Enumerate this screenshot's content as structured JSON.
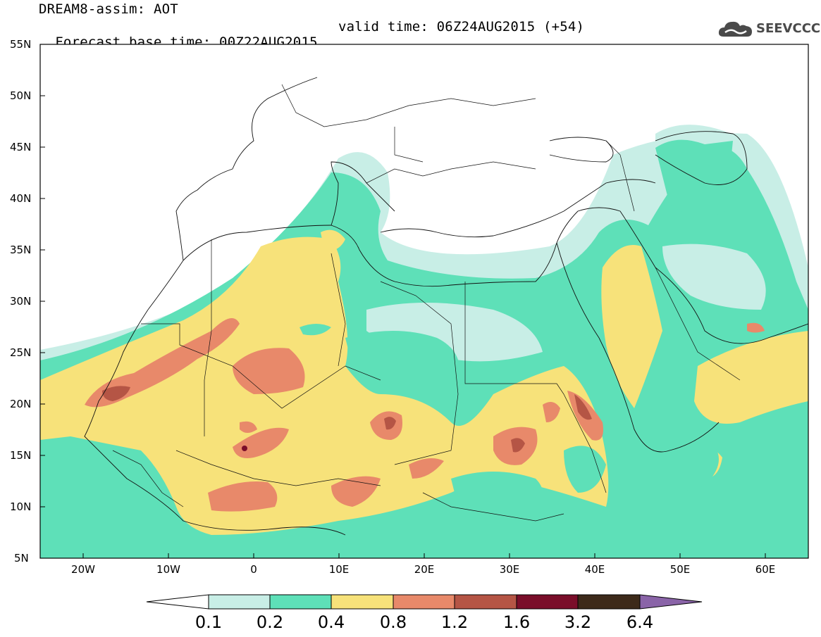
{
  "title": {
    "line1": "DREAM8-assim: AOT",
    "line2_base": "Forecast base time: 00Z22AUG2015",
    "line2_valid": "valid time: 06Z24AUG2015 (+54)"
  },
  "logo": {
    "text": "SEEVCCC",
    "icon": "cloud-icon"
  },
  "axes": {
    "lat_labels": [
      "55N",
      "50N",
      "45N",
      "40N",
      "35N",
      "30N",
      "25N",
      "20N",
      "15N",
      "10N",
      "5N"
    ],
    "lon_labels": [
      "20W",
      "10W",
      "0",
      "10E",
      "20E",
      "30E",
      "40E",
      "50E",
      "60E"
    ],
    "lat_range": [
      5,
      55
    ],
    "lon_range": [
      -25,
      65
    ]
  },
  "colorbar": {
    "levels": [
      "0.1",
      "0.2",
      "0.4",
      "0.8",
      "1.2",
      "1.6",
      "3.2",
      "6.4"
    ],
    "colors": {
      "below": "#ffffff",
      "c1": "#c8eee6",
      "c2": "#5ee0b8",
      "c3": "#f7e27a",
      "c4": "#e8896a",
      "c5": "#b55545",
      "c6": "#7a0e2a",
      "c7": "#3d2a1a",
      "above": "#8a64a8"
    }
  }
}
